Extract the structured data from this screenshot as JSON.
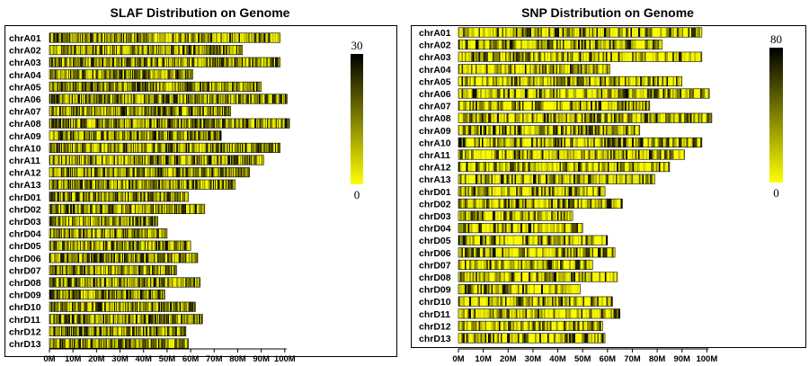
{
  "chart_data": [
    {
      "type": "heatmap",
      "title": "SLAF Distribution on Genome",
      "colorbar": {
        "min": "0",
        "max": "30",
        "low_color": "#ffff00",
        "high_color": "#000000"
      },
      "x_ticks": [
        "0M",
        "10M",
        "20M",
        "30M",
        "40M",
        "50M",
        "60M",
        "70M",
        "80M",
        "90M",
        "100M"
      ],
      "xlim_mb": [
        0,
        110
      ],
      "chromosomes": [
        {
          "name": "chrA01",
          "length_mb": 98
        },
        {
          "name": "chrA02",
          "length_mb": 82
        },
        {
          "name": "chrA03",
          "length_mb": 98
        },
        {
          "name": "chrA04",
          "length_mb": 61
        },
        {
          "name": "chrA05",
          "length_mb": 90
        },
        {
          "name": "chrA06",
          "length_mb": 101
        },
        {
          "name": "chrA07",
          "length_mb": 77
        },
        {
          "name": "chrA08",
          "length_mb": 102
        },
        {
          "name": "chrA09",
          "length_mb": 73
        },
        {
          "name": "chrA10",
          "length_mb": 98
        },
        {
          "name": "chrA11",
          "length_mb": 91
        },
        {
          "name": "chrA12",
          "length_mb": 85
        },
        {
          "name": "chrA13",
          "length_mb": 79
        },
        {
          "name": "chrD01",
          "length_mb": 59
        },
        {
          "name": "chrD02",
          "length_mb": 66
        },
        {
          "name": "chrD03",
          "length_mb": 46
        },
        {
          "name": "chrD04",
          "length_mb": 50
        },
        {
          "name": "chrD05",
          "length_mb": 60
        },
        {
          "name": "chrD06",
          "length_mb": 63
        },
        {
          "name": "chrD07",
          "length_mb": 54
        },
        {
          "name": "chrD08",
          "length_mb": 64
        },
        {
          "name": "chrD09",
          "length_mb": 49
        },
        {
          "name": "chrD10",
          "length_mb": 62
        },
        {
          "name": "chrD11",
          "length_mb": 65
        },
        {
          "name": "chrD12",
          "length_mb": 58
        },
        {
          "name": "chrD13",
          "length_mb": 59
        }
      ]
    },
    {
      "type": "heatmap",
      "title": "SNP Distribution on Genome",
      "colorbar": {
        "min": "0",
        "max": "80",
        "low_color": "#ffff00",
        "high_color": "#000000"
      },
      "x_ticks": [
        "0M",
        "10M",
        "20M",
        "30M",
        "40M",
        "50M",
        "60M",
        "70M",
        "80M",
        "90M",
        "100M"
      ],
      "xlim_mb": [
        0,
        110
      ],
      "chromosomes": [
        {
          "name": "chrA01",
          "length_mb": 98
        },
        {
          "name": "chrA02",
          "length_mb": 82
        },
        {
          "name": "chrA03",
          "length_mb": 98
        },
        {
          "name": "chrA04",
          "length_mb": 61
        },
        {
          "name": "chrA05",
          "length_mb": 90
        },
        {
          "name": "chrA06",
          "length_mb": 101
        },
        {
          "name": "chrA07",
          "length_mb": 77
        },
        {
          "name": "chrA08",
          "length_mb": 102
        },
        {
          "name": "chrA09",
          "length_mb": 73
        },
        {
          "name": "chrA10",
          "length_mb": 98
        },
        {
          "name": "chrA11",
          "length_mb": 91
        },
        {
          "name": "chrA12",
          "length_mb": 85
        },
        {
          "name": "chrA13",
          "length_mb": 79
        },
        {
          "name": "chrD01",
          "length_mb": 59
        },
        {
          "name": "chrD02",
          "length_mb": 66
        },
        {
          "name": "chrD03",
          "length_mb": 46
        },
        {
          "name": "chrD04",
          "length_mb": 50
        },
        {
          "name": "chrD05",
          "length_mb": 60
        },
        {
          "name": "chrD06",
          "length_mb": 63
        },
        {
          "name": "chrD07",
          "length_mb": 54
        },
        {
          "name": "chrD08",
          "length_mb": 64
        },
        {
          "name": "chrD09",
          "length_mb": 49
        },
        {
          "name": "chrD10",
          "length_mb": 62
        },
        {
          "name": "chrD11",
          "length_mb": 65
        },
        {
          "name": "chrD12",
          "length_mb": 58
        },
        {
          "name": "chrD13",
          "length_mb": 59
        }
      ]
    }
  ]
}
